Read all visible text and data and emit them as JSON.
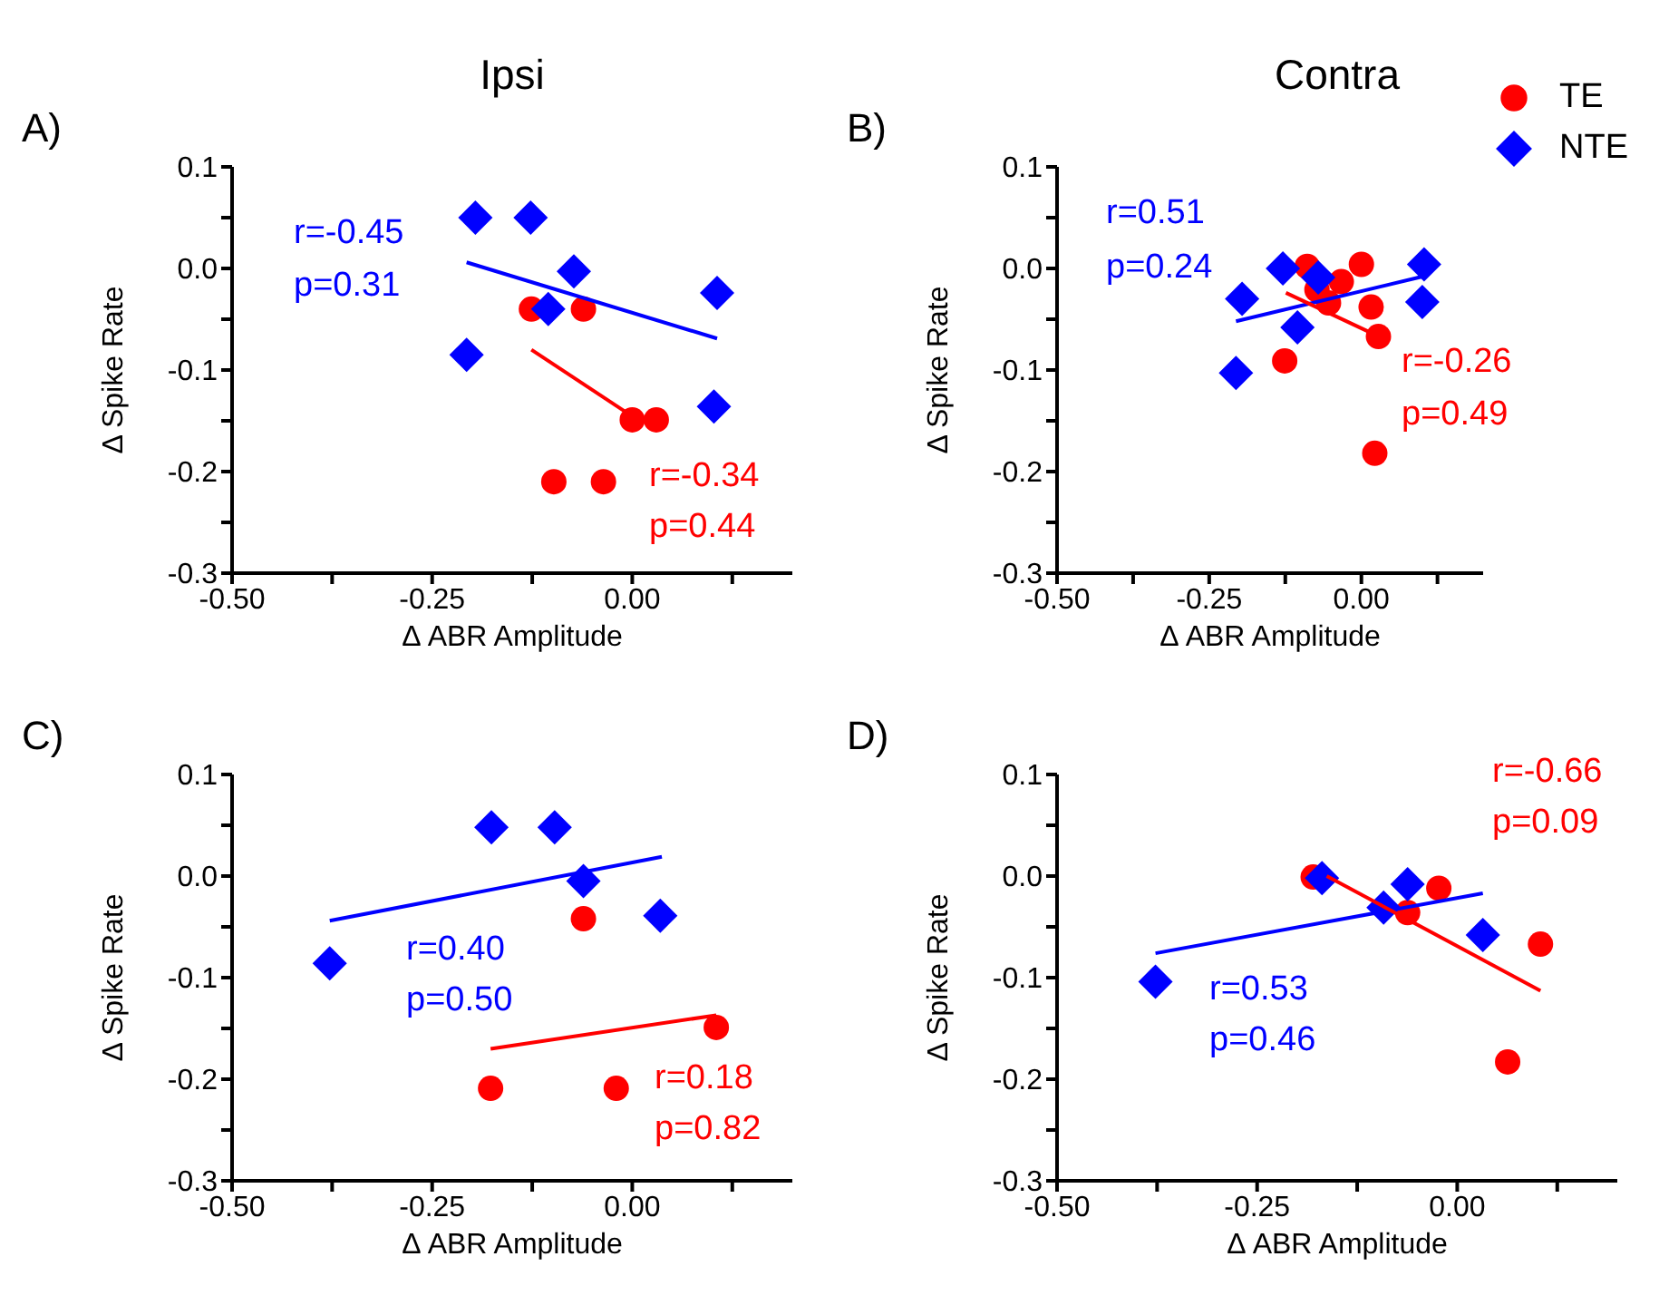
{
  "chart_data": [
    {
      "type": "scatter",
      "title": "Ipsi",
      "subtitle": "A)",
      "xlabel": "Δ ABR Amplitude",
      "ylabel": "Δ Spike Rate",
      "xlim": [
        -0.5,
        0.2
      ],
      "ylim": [
        -0.3,
        0.1
      ],
      "xticks": [
        {
          "value": -0.5,
          "label": "-0.50"
        },
        {
          "value": -0.375,
          "label": null
        },
        {
          "value": -0.25,
          "label": "-0.25"
        },
        {
          "value": -0.125,
          "label": null
        },
        {
          "value": 0,
          "label": "0.00"
        },
        {
          "value": 0.125,
          "label": null
        }
      ],
      "yticks": [
        0.1,
        {
          "value": 0.05,
          "label": null
        },
        {
          "value": 0,
          "label": "0.0"
        },
        {
          "value": -0.05,
          "label": null
        },
        -0.1,
        {
          "value": -0.15,
          "label": null
        },
        -0.2,
        {
          "value": -0.25,
          "label": null
        },
        -0.3
      ],
      "series": [
        {
          "color": "#ff0000",
          "marker": "circle",
          "x": [
            -0.126,
            -0.061,
            0.0,
            0.03,
            -0.098,
            -0.036
          ],
          "values": [
            -0.04,
            -0.04,
            -0.149,
            -0.149,
            -0.21,
            -0.21
          ]
        },
        {
          "color": "#0000ff",
          "marker": "diamond",
          "x": [
            -0.196,
            -0.127,
            -0.073,
            -0.105,
            -0.207,
            0.106,
            0.102
          ],
          "values": [
            0.05,
            0.05,
            -0.003,
            -0.04,
            -0.085,
            -0.024,
            -0.136
          ]
        },
        {
          "type": "line",
          "color": "#0000ff",
          "x": [
            -0.207,
            0.106
          ],
          "values": [
            0.006,
            -0.069
          ]
        },
        {
          "type": "line",
          "color": "#ff0000",
          "x": [
            -0.126,
            -0.005
          ],
          "values": [
            -0.08,
            -0.143
          ]
        }
      ],
      "annotations": [
        "r=-0.45",
        "p=0.31",
        "r=-0.34",
        "p=0.44"
      ]
    },
    {
      "type": "scatter",
      "title": "Contra",
      "subtitle": "B)",
      "xlabel": "Δ ABR Amplitude",
      "ylabel": "Δ Spike Rate",
      "xlim": [
        -0.5,
        0.2
      ],
      "ylim": [
        -0.3,
        0.1
      ],
      "legend": "top right",
      "xticks": [
        {
          "value": -0.5,
          "label": "-0.50"
        },
        {
          "value": -0.375,
          "label": null
        },
        {
          "value": -0.25,
          "label": "-0.25"
        },
        {
          "value": -0.125,
          "label": null
        },
        {
          "value": 0,
          "label": "0.00"
        },
        {
          "value": 0.125,
          "label": null
        }
      ],
      "yticks": [
        0.1,
        {
          "value": 0.05,
          "label": null
        },
        {
          "value": 0,
          "label": "0.0"
        },
        {
          "value": -0.05,
          "label": null
        },
        -0.1,
        {
          "value": -0.15,
          "label": null
        },
        -0.2,
        {
          "value": -0.25,
          "label": null
        },
        -0.3
      ],
      "series": [
        {
          "name": "TE",
          "color": "#ff0000",
          "marker": "circle",
          "x": [
            -0.089,
            0.0,
            -0.033,
            -0.073,
            -0.054,
            0.016,
            0.028,
            -0.126,
            0.022
          ],
          "values": [
            0.002,
            0.004,
            -0.013,
            -0.021,
            -0.034,
            -0.038,
            -0.067,
            -0.091,
            -0.182
          ]
        },
        {
          "name": "NTE",
          "color": "#0000ff",
          "marker": "diamond",
          "x": [
            -0.129,
            -0.071,
            0.103,
            0.1,
            -0.196,
            -0.105,
            -0.206
          ],
          "values": [
            0.0,
            -0.009,
            0.004,
            -0.033,
            -0.03,
            -0.058,
            -0.103
          ]
        },
        {
          "type": "line",
          "color": "#0000ff",
          "x": [
            -0.206,
            0.1
          ],
          "values": [
            -0.052,
            -0.008
          ]
        },
        {
          "type": "line",
          "color": "#ff0000",
          "x": [
            -0.124,
            0.025
          ],
          "values": [
            -0.024,
            -0.066
          ]
        }
      ],
      "annotations": [
        "r=0.51",
        "p=0.24",
        "r=-0.26",
        "p=0.49"
      ]
    },
    {
      "type": "scatter",
      "subtitle": "C)",
      "xlabel": "Δ ABR Amplitude",
      "ylabel": "Δ Spike Rate",
      "xlim": [
        -0.5,
        0.2
      ],
      "ylim": [
        -0.3,
        0.1
      ],
      "xticks": [
        {
          "value": -0.5,
          "label": "-0.50"
        },
        {
          "value": -0.375,
          "label": null
        },
        {
          "value": -0.25,
          "label": "-0.25"
        },
        {
          "value": -0.125,
          "label": null
        },
        {
          "value": 0,
          "label": "0.00"
        },
        {
          "value": 0.125,
          "label": null
        }
      ],
      "yticks": [
        0.1,
        {
          "value": 0.05,
          "label": null
        },
        {
          "value": 0,
          "label": "0.0"
        },
        {
          "value": -0.05,
          "label": null
        },
        -0.1,
        {
          "value": -0.15,
          "label": null
        },
        -0.2,
        {
          "value": -0.25,
          "label": null
        },
        -0.3
      ],
      "series": [
        {
          "color": "#ff0000",
          "marker": "circle",
          "x": [
            -0.061,
            0.105,
            -0.177,
            -0.02
          ],
          "values": [
            -0.042,
            -0.149,
            -0.209,
            -0.209
          ]
        },
        {
          "color": "#0000ff",
          "marker": "diamond",
          "x": [
            -0.176,
            -0.097,
            -0.061,
            0.035,
            -0.378
          ],
          "values": [
            0.048,
            0.048,
            -0.005,
            -0.039,
            -0.086
          ]
        },
        {
          "type": "line",
          "color": "#0000ff",
          "x": [
            -0.378,
            0.037
          ],
          "values": [
            -0.044,
            0.019
          ]
        },
        {
          "type": "line",
          "color": "#ff0000",
          "x": [
            -0.177,
            0.105
          ],
          "values": [
            -0.17,
            -0.137
          ]
        }
      ],
      "annotations": [
        "r=0.40",
        "p=0.50",
        "r=0.18",
        "p=0.82"
      ]
    },
    {
      "type": "scatter",
      "subtitle": "D)",
      "xlabel": "Δ ABR Amplitude",
      "ylabel": "Δ Spike Rate",
      "xlim": [
        -0.5,
        0.2
      ],
      "ylim": [
        -0.3,
        0.1
      ],
      "xticks": [
        {
          "value": -0.5,
          "label": "-0.50"
        },
        {
          "value": -0.375,
          "label": null
        },
        {
          "value": -0.25,
          "label": "-0.25"
        },
        {
          "value": -0.125,
          "label": null
        },
        {
          "value": 0,
          "label": "0.00"
        },
        {
          "value": 0.125,
          "label": null
        }
      ],
      "yticks": [
        0.1,
        {
          "value": 0.05,
          "label": null
        },
        {
          "value": 0,
          "label": "0.0"
        },
        {
          "value": -0.05,
          "label": null
        },
        -0.1,
        {
          "value": -0.15,
          "label": null
        },
        -0.2,
        {
          "value": -0.25,
          "label": null
        },
        -0.3
      ],
      "series": [
        {
          "color": "#ff0000",
          "marker": "circle",
          "x": [
            -0.18,
            -0.023,
            -0.062,
            0.104,
            0.063
          ],
          "values": [
            -0.001,
            -0.012,
            -0.036,
            -0.067,
            -0.183
          ]
        },
        {
          "color": "#0000ff",
          "marker": "diamond",
          "x": [
            -0.169,
            -0.062,
            -0.092,
            0.032,
            -0.377
          ],
          "values": [
            -0.002,
            -0.008,
            -0.031,
            -0.058,
            -0.104
          ]
        },
        {
          "type": "line",
          "color": "#0000ff",
          "x": [
            -0.377,
            0.032
          ],
          "values": [
            -0.076,
            -0.017
          ]
        },
        {
          "type": "line",
          "color": "#ff0000",
          "x": [
            -0.163,
            0.104
          ],
          "values": [
            0.0,
            -0.113
          ]
        }
      ],
      "annotations": [
        "r=0.53",
        "p=0.46",
        "r=-0.66",
        "p=0.09"
      ]
    }
  ]
}
